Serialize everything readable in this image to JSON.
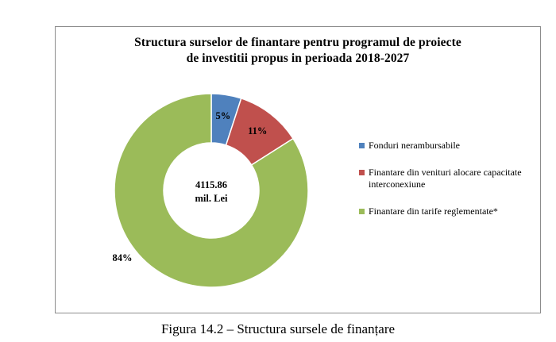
{
  "chart_data": {
    "type": "pie",
    "title_lines": [
      "Structura surselor de finantare pentru programul de proiecte",
      "de investitii propus in perioada 2018-2027"
    ],
    "center_label_lines": [
      "4115.86",
      "mil. Lei"
    ],
    "legend_position": "right",
    "series": [
      {
        "name": "Fonduri nerambursabile",
        "value": 5,
        "label": "5%",
        "color": "#4f81bd"
      },
      {
        "name": "Finantare din venituri alocare capacitate interconexiune",
        "value": 11,
        "label": "11%",
        "color": "#c0504d"
      },
      {
        "name": "Finantare din tarife reglementate*",
        "value": 84,
        "label": "84%",
        "color": "#9bbb59"
      }
    ]
  },
  "caption": "Figura 14.2 – Structura sursele de finanțare"
}
